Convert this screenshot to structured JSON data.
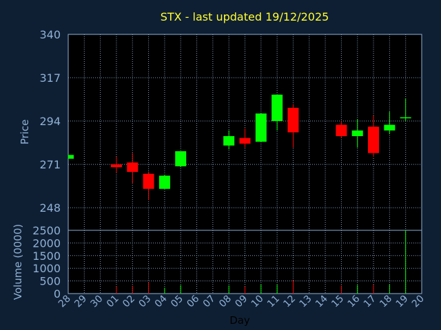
{
  "chart_data": {
    "type": "candlestick",
    "title": "STX - last updated 19/12/2025",
    "ylabel": "Price",
    "xlabel": "Day",
    "volume_label": "Volume (0000)",
    "ylim": [
      236,
      340
    ],
    "yticks": [
      248,
      271,
      294,
      317,
      340
    ],
    "volume_lim": [
      0,
      2500
    ],
    "volume_ticks": [
      0,
      500,
      1000,
      1500,
      2000,
      2500
    ],
    "grid": true,
    "colors": {
      "up": "#00ff00",
      "down": "#ff0000",
      "title": "#ffff33",
      "axis": "#8fb1d6",
      "background": "#0f1f33",
      "plot": "#000000"
    },
    "x": [
      "28",
      "29",
      "30",
      "01",
      "02",
      "03",
      "04",
      "05",
      "06",
      "07",
      "08",
      "09",
      "10",
      "11",
      "12",
      "13",
      "14",
      "15",
      "16",
      "17",
      "18",
      "19",
      "20"
    ],
    "candles": [
      {
        "day": "28",
        "open": 274,
        "close": 276,
        "high": 276,
        "low": 274,
        "volume": 0
      },
      {
        "day": "01",
        "open": 271,
        "close": 269.5,
        "high": 275,
        "low": 266.5,
        "volume": 280
      },
      {
        "day": "02",
        "open": 272,
        "close": 267,
        "high": 277,
        "low": 261,
        "volume": 310
      },
      {
        "day": "03",
        "open": 266,
        "close": 258,
        "high": 267,
        "low": 252,
        "volume": 450
      },
      {
        "day": "04",
        "open": 258,
        "close": 265,
        "high": 265.5,
        "low": 258,
        "volume": 230
      },
      {
        "day": "05",
        "open": 270,
        "close": 278,
        "high": 278,
        "low": 269.5,
        "volume": 330
      },
      {
        "day": "08",
        "open": 281,
        "close": 286,
        "high": 289,
        "low": 279,
        "volume": 320
      },
      {
        "day": "09",
        "open": 285,
        "close": 282,
        "high": 290,
        "low": 280,
        "volume": 280
      },
      {
        "day": "10",
        "open": 283,
        "close": 298,
        "high": 298,
        "low": 283,
        "volume": 360
      },
      {
        "day": "11",
        "open": 294,
        "close": 308,
        "high": 308,
        "low": 289,
        "volume": 350
      },
      {
        "day": "12",
        "open": 301,
        "close": 288,
        "high": 303,
        "low": 280,
        "volume": 530
      },
      {
        "day": "15",
        "open": 292,
        "close": 286,
        "high": 294,
        "low": 285,
        "volume": 320
      },
      {
        "day": "16",
        "open": 286,
        "close": 289,
        "high": 295,
        "low": 280,
        "volume": 340
      },
      {
        "day": "17",
        "open": 291,
        "close": 277,
        "high": 297,
        "low": 275,
        "volume": 350
      },
      {
        "day": "18",
        "open": 289,
        "close": 292,
        "high": 299,
        "low": 287,
        "volume": 360
      },
      {
        "day": "19",
        "open": 296,
        "close": 296,
        "high": 306,
        "low": 294,
        "volume": 2500
      }
    ]
  }
}
